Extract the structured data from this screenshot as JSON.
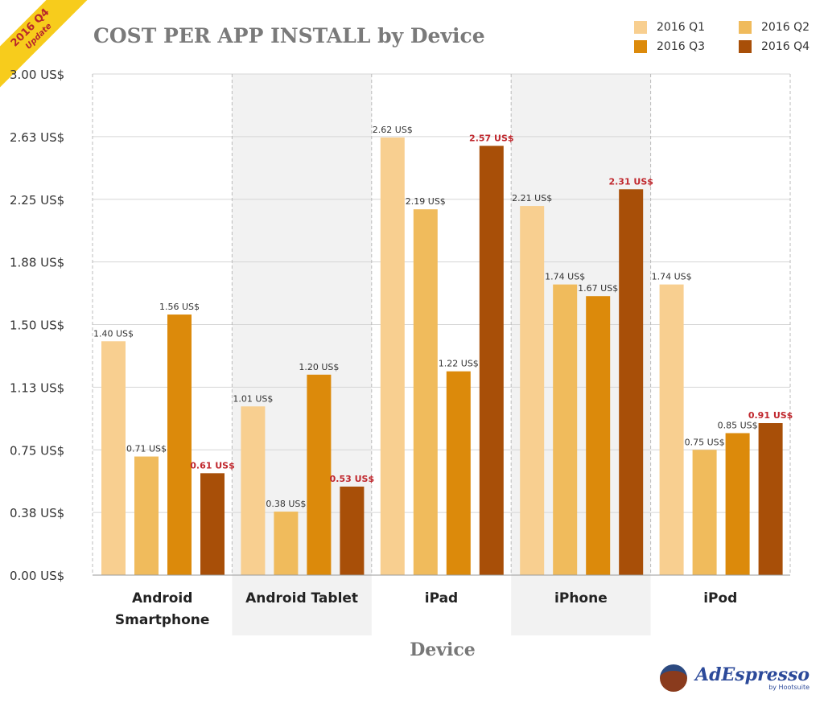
{
  "ribbon": {
    "line1": "2016 Q4",
    "line2": "Update"
  },
  "logo": {
    "name": "AdEspresso",
    "sub": "by Hootsuite"
  },
  "chart_data": {
    "type": "bar",
    "title": "COST PER APP INSTALL by Device",
    "xlabel": "Device",
    "ylabel": "",
    "ylim": [
      0,
      3
    ],
    "yticks": [
      "0.00 US$",
      "0.38 US$",
      "0.75 US$",
      "1.13 US$",
      "1.50 US$",
      "1.88 US$",
      "2.25 US$",
      "2.63 US$",
      "3.00 US$"
    ],
    "ytick_values": [
      0,
      0.375,
      0.75,
      1.125,
      1.5,
      1.875,
      2.25,
      2.625,
      3
    ],
    "categories": [
      "Android Smartphone",
      "Android Tablet",
      "iPad",
      "iPhone",
      "iPod"
    ],
    "series": [
      {
        "name": "2016 Q1",
        "color": "#f8cf90",
        "values": [
          1.4,
          1.01,
          2.62,
          2.21,
          1.74
        ],
        "labels": [
          "1.40 US$",
          "1.01 US$",
          "2.62 US$",
          "2.21 US$",
          "1.74 US$"
        ]
      },
      {
        "name": "2016 Q2",
        "color": "#f0bb5c",
        "values": [
          0.71,
          0.38,
          2.19,
          1.74,
          0.75
        ],
        "labels": [
          "0.71 US$",
          "0.38 US$",
          "2.19 US$",
          "1.74 US$",
          "0.75 US$"
        ]
      },
      {
        "name": "2016 Q3",
        "color": "#dc8a0b",
        "values": [
          1.56,
          1.2,
          1.22,
          1.67,
          0.85
        ],
        "labels": [
          "1.56 US$",
          "1.20 US$",
          "1.22 US$",
          "1.67 US$",
          "0.85 US$"
        ]
      },
      {
        "name": "2016 Q4",
        "color": "#a84f08",
        "values": [
          0.61,
          0.53,
          2.57,
          2.31,
          0.91
        ],
        "labels": [
          "0.61 US$",
          "0.53 US$",
          "2.57 US$",
          "2.31 US$",
          "0.91 US$"
        ]
      }
    ],
    "highlight_label_color": "#c0272d",
    "legend_position": "top-right",
    "grid": true
  }
}
